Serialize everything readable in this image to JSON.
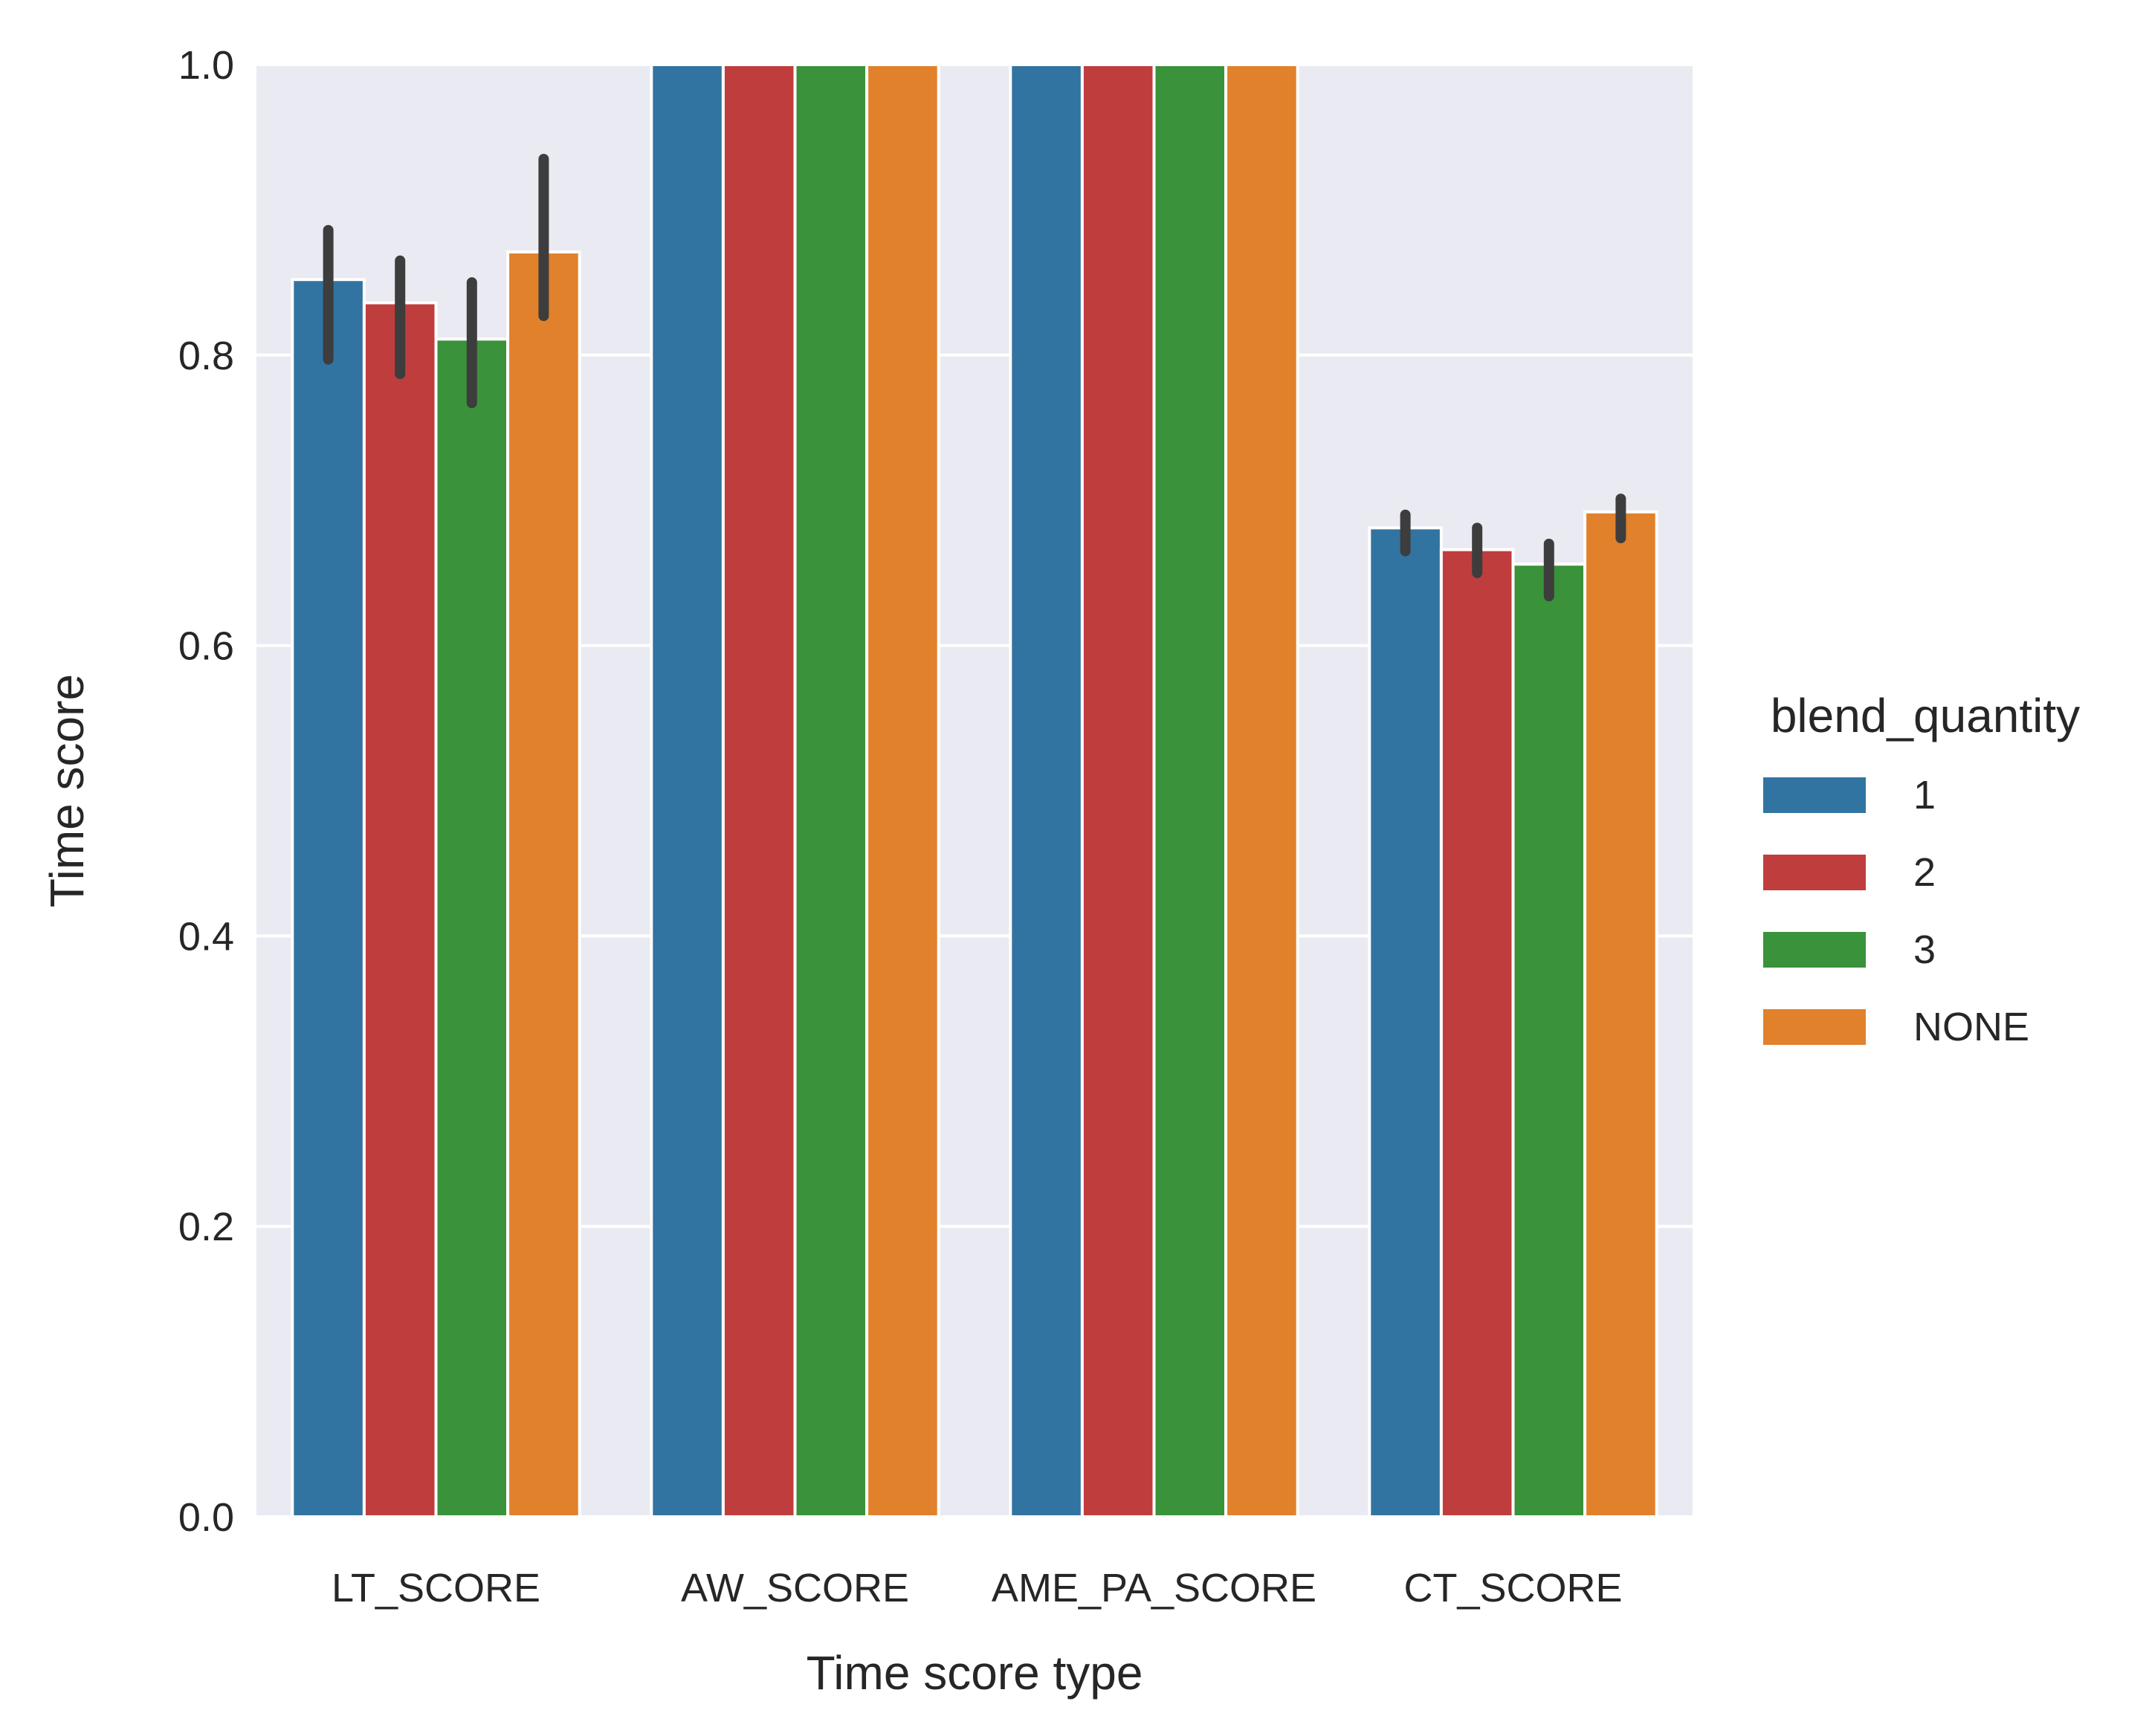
{
  "chart_data": {
    "type": "bar",
    "xlabel": "Time score type",
    "ylabel": "Time score",
    "ylim": [
      0.0,
      1.0
    ],
    "yticks": [
      "0.0",
      "0.2",
      "0.4",
      "0.6",
      "0.8",
      "1.0"
    ],
    "grid": true,
    "categories": [
      "LT_SCORE",
      "AW_SCORE",
      "AME_PA_SCORE",
      "CT_SCORE"
    ],
    "legend": {
      "title": "blend_quantity",
      "placement": "center-right"
    },
    "series": [
      {
        "name": "1",
        "color": "#3274a1",
        "values": [
          0.852,
          1.0,
          1.0,
          0.681
        ],
        "err_low": [
          0.797,
          1.0,
          1.0,
          0.665
        ],
        "err_high": [
          0.886,
          1.0,
          1.0,
          0.69
        ]
      },
      {
        "name": "2",
        "color": "#c03d3e",
        "values": [
          0.836,
          1.0,
          1.0,
          0.666
        ],
        "err_low": [
          0.787,
          1.0,
          1.0,
          0.65
        ],
        "err_high": [
          0.865,
          1.0,
          1.0,
          0.681
        ]
      },
      {
        "name": "3",
        "color": "#3a923a",
        "values": [
          0.811,
          1.0,
          1.0,
          0.656
        ],
        "err_low": [
          0.767,
          1.0,
          1.0,
          0.634
        ],
        "err_high": [
          0.85,
          1.0,
          1.0,
          0.67
        ]
      },
      {
        "name": "NONE",
        "color": "#e1812c",
        "values": [
          0.871,
          1.0,
          1.0,
          0.692
        ],
        "err_low": [
          0.827,
          1.0,
          1.0,
          0.674
        ],
        "err_high": [
          0.935,
          1.0,
          1.0,
          0.701
        ]
      }
    ]
  }
}
